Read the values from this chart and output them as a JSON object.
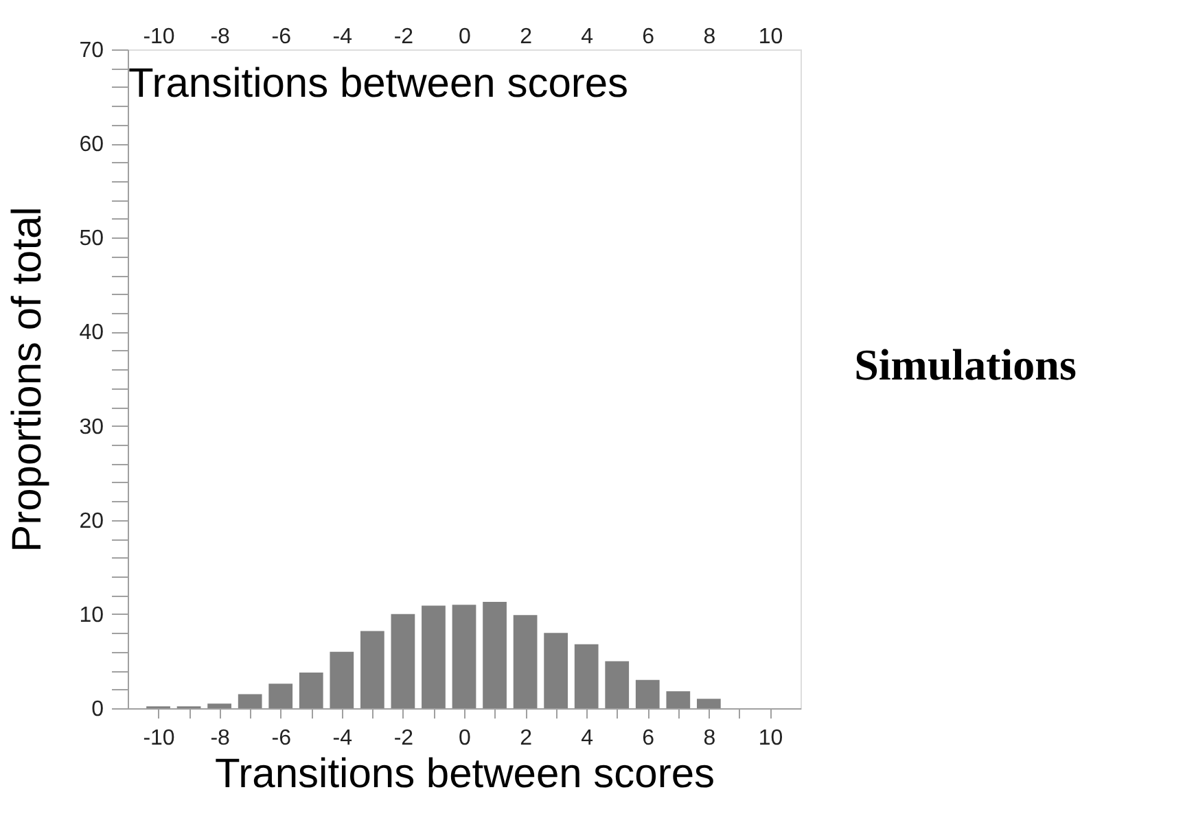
{
  "chart_data": {
    "type": "bar",
    "x": [
      -10,
      -9,
      -8,
      -7,
      -6,
      -5,
      -4,
      -3,
      -2,
      -1,
      0,
      1,
      2,
      3,
      4,
      5,
      6,
      7,
      8
    ],
    "values": [
      0.2,
      0.2,
      0.5,
      1.5,
      2.6,
      3.8,
      6.0,
      8.2,
      10.0,
      10.9,
      11.0,
      11.3,
      9.9,
      8.0,
      6.8,
      5.0,
      3.0,
      1.8,
      1.0
    ],
    "color": "#808080",
    "xlabel": "Transitions between scores",
    "ylabel": "Proportions of total",
    "x2label": "Transitions between scores",
    "xlim": [
      -11,
      11
    ],
    "xticks": [
      -10,
      {
        "value": -9,
        "label": null
      },
      -8,
      {
        "value": -7,
        "label": null
      },
      -6,
      {
        "value": -5,
        "label": null
      },
      -4,
      {
        "value": -3,
        "label": null
      },
      -2,
      {
        "value": -1,
        "label": null
      },
      0,
      {
        "value": 1,
        "label": null
      },
      2,
      {
        "value": 3,
        "label": null
      },
      4,
      {
        "value": 5,
        "label": null
      },
      6,
      {
        "value": 7,
        "label": null
      },
      8,
      {
        "value": 9,
        "label": null
      },
      10
    ],
    "x2lim": [
      -11,
      11
    ],
    "x2ticks": [
      -10,
      -8,
      -6,
      -4,
      -2,
      0,
      2,
      4,
      6,
      8,
      10
    ],
    "ylim": [
      0,
      70
    ],
    "yticks": [
      0,
      {
        "value": 2,
        "label": null
      },
      {
        "value": 4,
        "label": null
      },
      {
        "value": 6,
        "label": null
      },
      {
        "value": 8,
        "label": null
      },
      10,
      {
        "value": 12,
        "label": null
      },
      {
        "value": 14,
        "label": null
      },
      {
        "value": 16,
        "label": null
      },
      {
        "value": 18,
        "label": null
      },
      20,
      {
        "value": 22,
        "label": null
      },
      {
        "value": 24,
        "label": null
      },
      {
        "value": 26,
        "label": null
      },
      {
        "value": 28,
        "label": null
      },
      30,
      {
        "value": 32,
        "label": null
      },
      {
        "value": 34,
        "label": null
      },
      {
        "value": 36,
        "label": null
      },
      {
        "value": 38,
        "label": null
      },
      40,
      {
        "value": 42,
        "label": null
      },
      {
        "value": 44,
        "label": null
      },
      {
        "value": 46,
        "label": null
      },
      {
        "value": 48,
        "label": null
      },
      50,
      {
        "value": 52,
        "label": null
      },
      {
        "value": 54,
        "label": null
      },
      {
        "value": 56,
        "label": null
      },
      {
        "value": 58,
        "label": null
      },
      60,
      {
        "value": 62,
        "label": null
      },
      {
        "value": 64,
        "label": null
      },
      {
        "value": 66,
        "label": null
      },
      {
        "value": 68,
        "label": null
      },
      70
    ],
    "grid": false,
    "annotations": [
      "Simulations"
    ]
  }
}
